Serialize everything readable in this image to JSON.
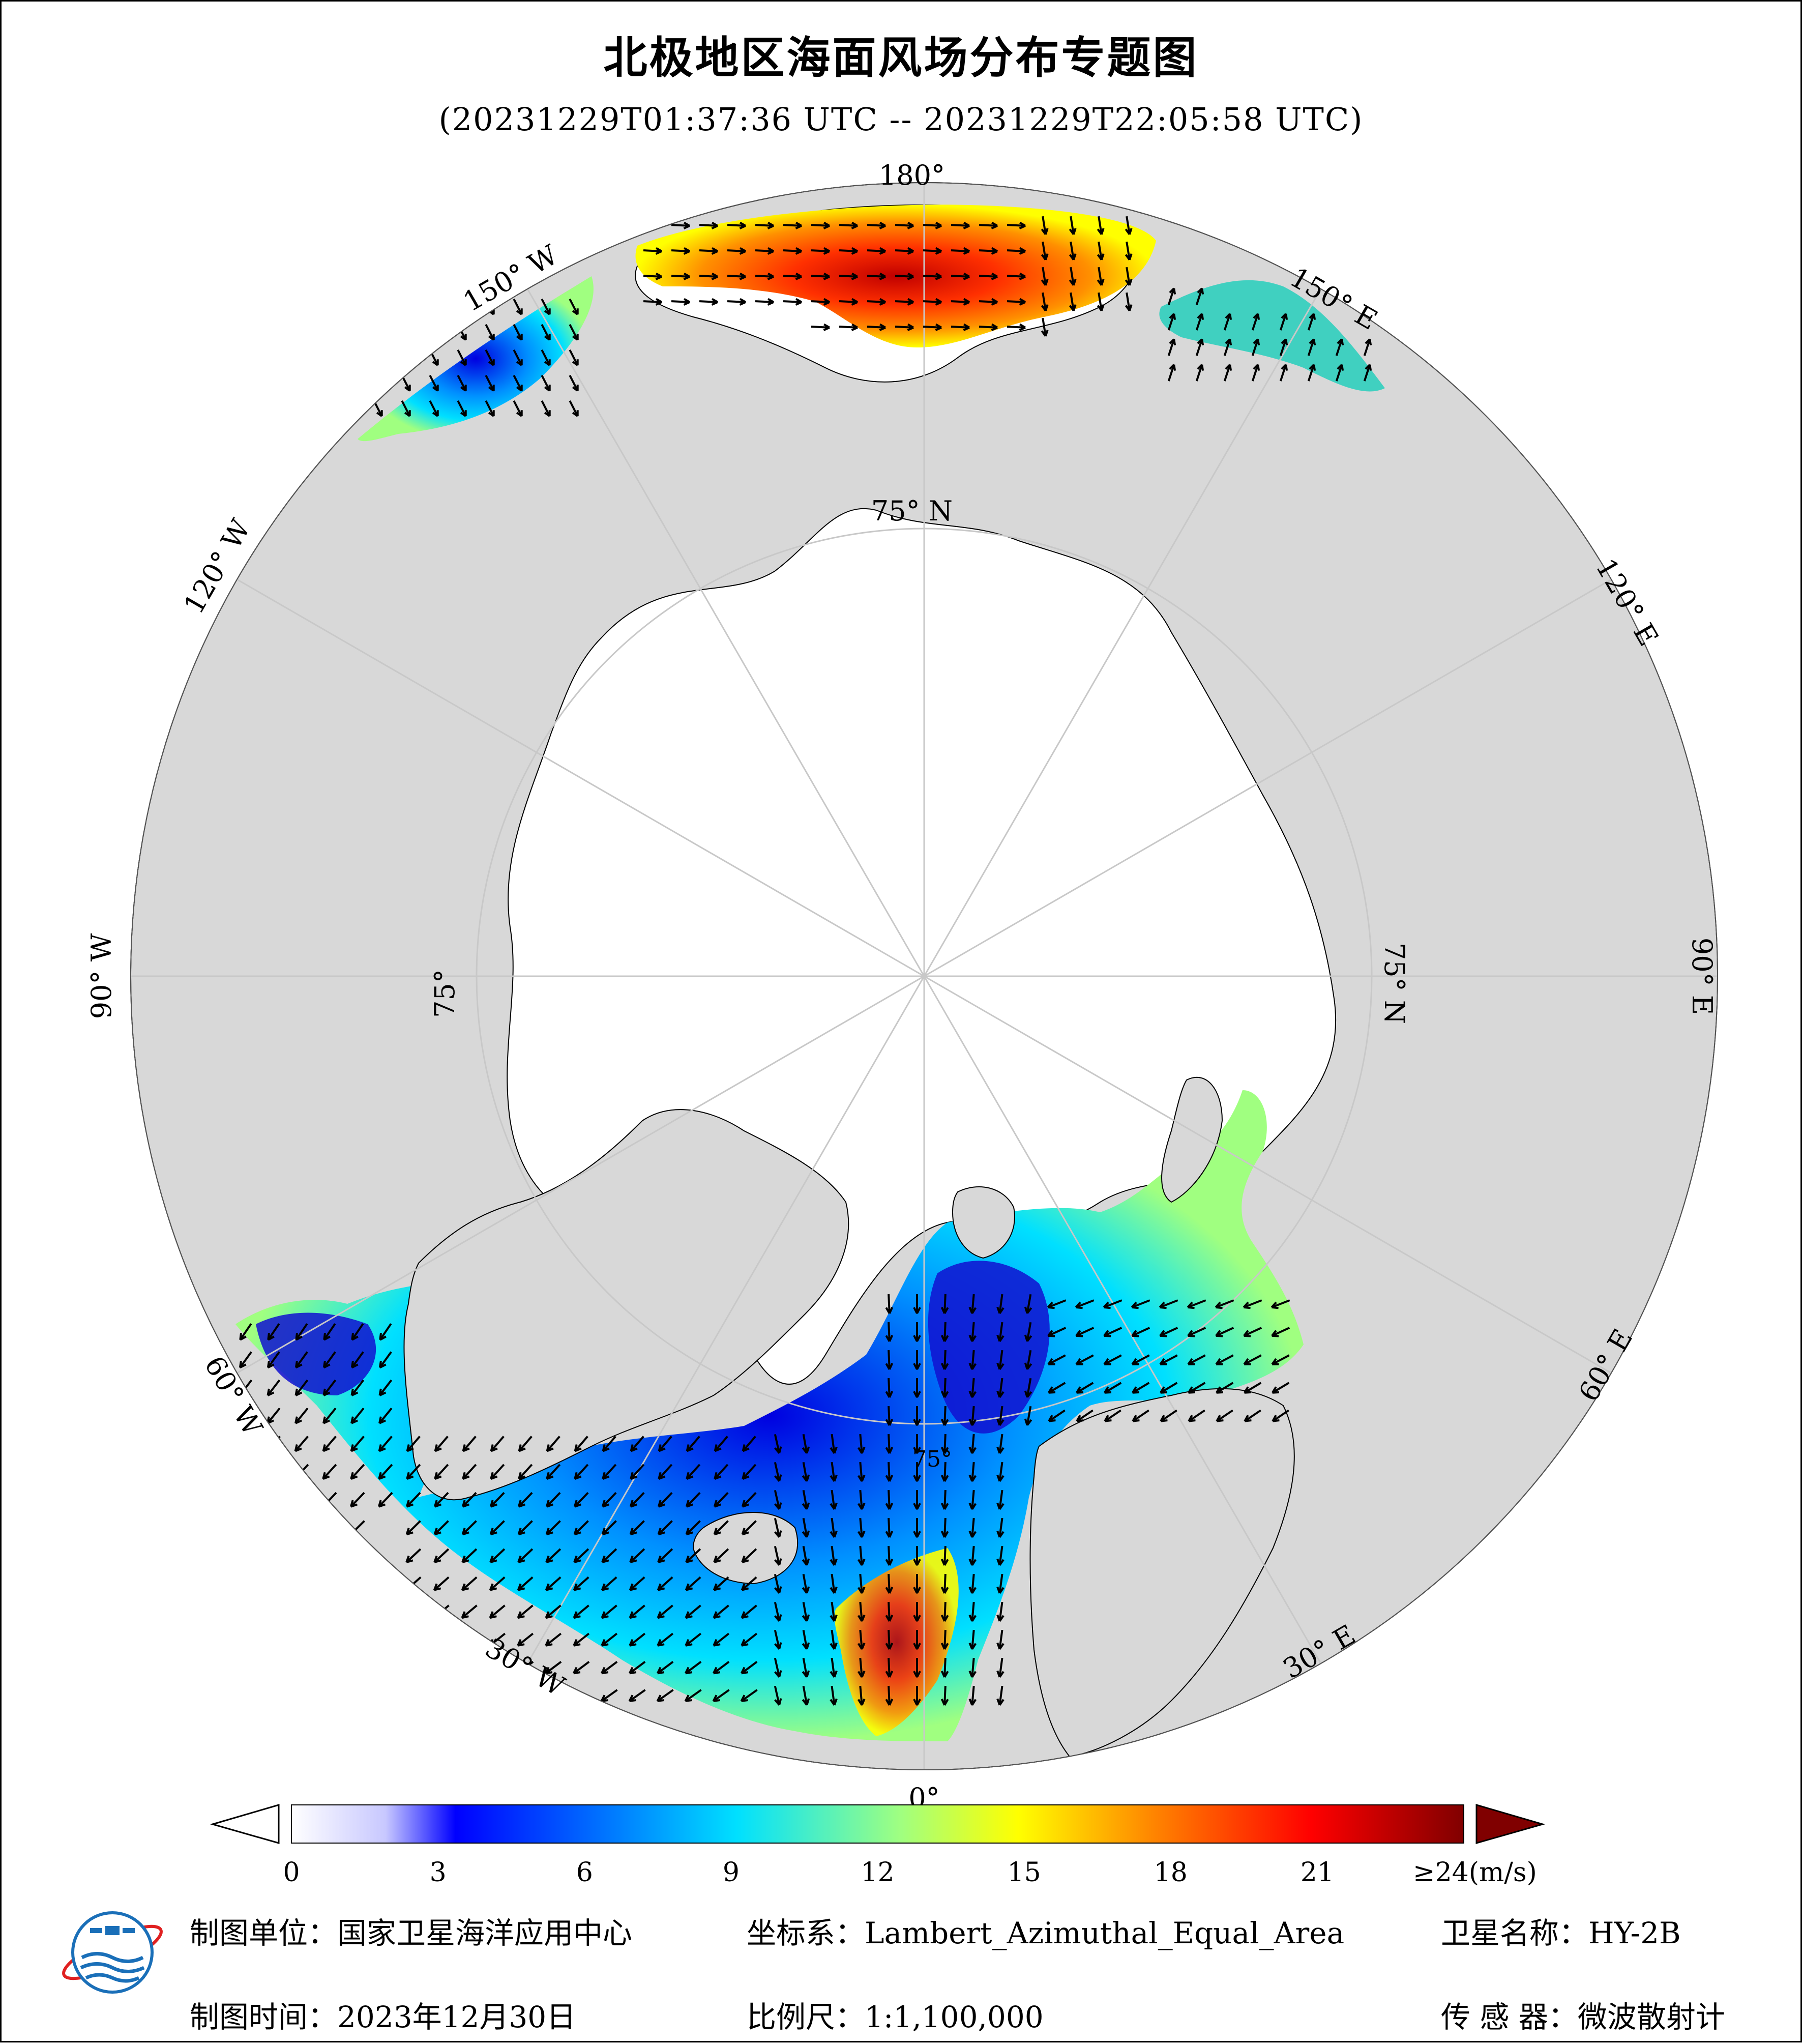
{
  "title": "北极地区海面风场分布专题图",
  "subtitle": "(20231229T01:37:36 UTC -- 20231229T22:05:58 UTC)",
  "map": {
    "projection": "Lambert_Azimuthal_Equal_Area",
    "longitude_labels": {
      "top": "180°",
      "bottom": "0°",
      "left": "90° W",
      "right": "90° E",
      "upper_left_1": "150° W",
      "upper_left_2": "120° W",
      "upper_right_1": "150° E",
      "upper_right_2": "120° E",
      "lower_left_1": "60° W",
      "lower_left_2": "30° W",
      "lower_right_1": "60° E",
      "lower_right_2": "30° E"
    },
    "latitude_labels": {
      "top": "75° N",
      "right": "75° N",
      "left": "75°",
      "bottom": "75°"
    },
    "colors": {
      "land": "#d8d8d8",
      "ice_or_no_data": "#ffffff",
      "graticule": "#c8c8c8",
      "arrow": "#000000"
    }
  },
  "colorbar": {
    "unit_label": "≥24(m/s)",
    "ticks": [
      "0",
      "3",
      "6",
      "9",
      "12",
      "15",
      "18",
      "21"
    ],
    "tick_values": [
      0,
      3,
      6,
      9,
      12,
      15,
      18,
      21
    ],
    "range": [
      0,
      24
    ],
    "stops": [
      "#ffffff",
      "#c8c8ff",
      "#0000ff",
      "#0080ff",
      "#00e0ff",
      "#a0ff80",
      "#ffff00",
      "#ff8000",
      "#ff0000",
      "#800000"
    ]
  },
  "footer": {
    "unit": "制图单位：国家卫星海洋应用中心",
    "coords": "坐标系：Lambert_Azimuthal_Equal_Area",
    "satellite": "卫星名称：HY-2B",
    "date": "制图时间：2023年12月30日",
    "scale": "比例尺：1:1,100,000",
    "sensor": "传 感 器：微波散射计"
  },
  "logo": {
    "name": "national-satellite-ocean-center-logo"
  }
}
